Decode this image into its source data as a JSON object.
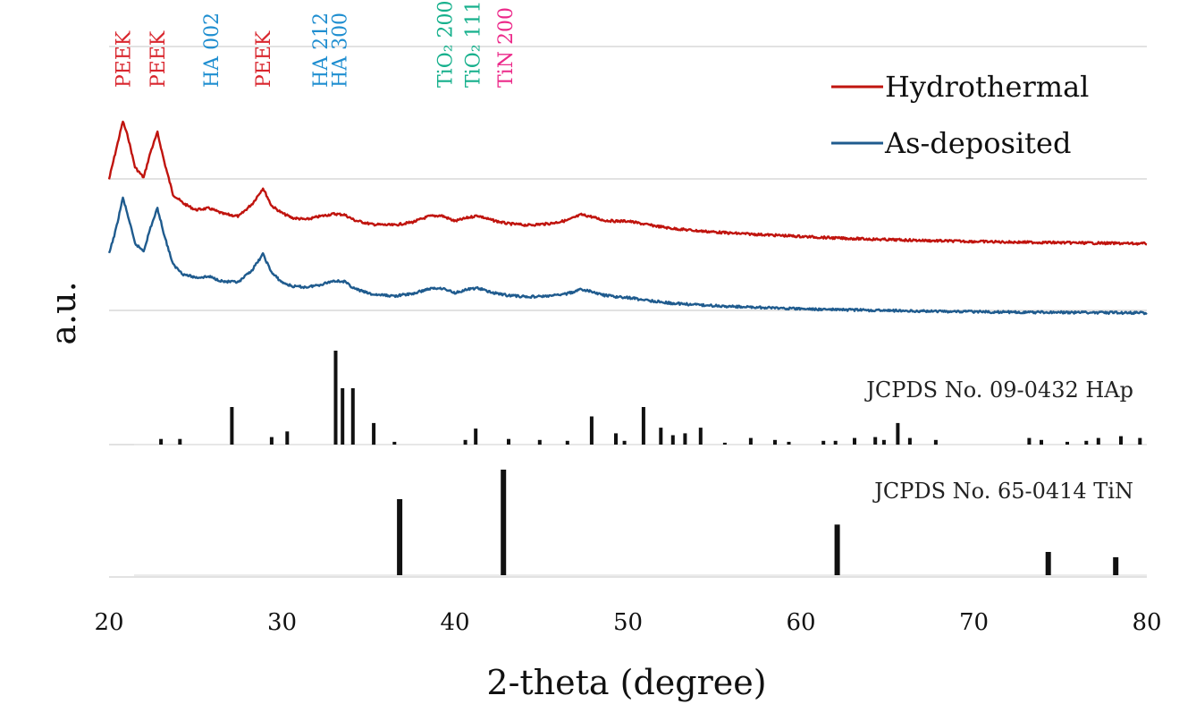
{
  "chart_data": {
    "type": "line",
    "xlabel": "2-theta (degree)",
    "ylabel": "a.u.",
    "xlim": [
      20,
      80
    ],
    "x_ticks": [
      "20",
      "30",
      "40",
      "50",
      "60",
      "70",
      "80"
    ],
    "grid": "horizontal",
    "legend_position": "top-right",
    "series": [
      {
        "name": "Hydrothermal",
        "color": "#c0140e",
        "x": [
          20,
          20.4,
          20.8,
          21.1,
          21.5,
          22.0,
          22.4,
          22.8,
          23.2,
          23.7,
          24.3,
          25.0,
          25.8,
          26.6,
          27.5,
          28.3,
          28.9,
          29.4,
          30.0,
          30.6,
          31.4,
          32.2,
          33.0,
          33.6,
          34.2,
          35.2,
          36.5,
          37.6,
          38.5,
          39.2,
          40.0,
          40.7,
          41.3,
          42.0,
          43.0,
          44.2,
          45.5,
          46.5,
          47.3,
          47.8,
          48.6,
          49.3,
          50.0,
          51.0,
          52.5,
          54.0,
          56.0,
          58.0,
          60.0,
          62.0,
          65.0,
          68.0,
          72.0,
          76.0,
          80.0
        ],
        "values": [
          44.8,
          52.0,
          59.2,
          55.2,
          47.8,
          45.2,
          51.6,
          56.4,
          49.0,
          41.0,
          38.8,
          37.2,
          37.6,
          36.2,
          35.6,
          38.8,
          42.6,
          38.2,
          36.4,
          35.2,
          34.8,
          35.6,
          36.2,
          36.0,
          34.6,
          33.6,
          33.4,
          34.2,
          35.6,
          35.8,
          34.4,
          35.2,
          35.8,
          34.8,
          33.8,
          33.4,
          33.8,
          34.6,
          36.0,
          35.6,
          34.6,
          34.4,
          34.4,
          33.6,
          32.6,
          32.0,
          31.4,
          31.0,
          30.6,
          30.2,
          29.8,
          29.5,
          29.2,
          29.0,
          28.8
        ]
      },
      {
        "name": "As-deposited",
        "color": "#1f5b8e",
        "x": [
          20,
          20.4,
          20.8,
          21.1,
          21.5,
          22.0,
          22.4,
          22.8,
          23.2,
          23.7,
          24.3,
          25.0,
          25.8,
          26.6,
          27.5,
          28.3,
          28.9,
          29.4,
          30.0,
          30.6,
          31.4,
          32.2,
          33.0,
          33.6,
          34.2,
          35.2,
          36.5,
          37.6,
          38.5,
          39.2,
          40.0,
          40.7,
          41.3,
          42.0,
          43.0,
          44.2,
          45.5,
          46.5,
          47.3,
          47.8,
          48.6,
          49.3,
          50.0,
          51.0,
          52.5,
          54.0,
          56.0,
          58.0,
          60.0,
          62.0,
          65.0,
          68.0,
          72.0,
          76.0,
          80.0
        ],
        "values": [
          26.2,
          32.4,
          40.2,
          35.6,
          28.8,
          27.0,
          32.8,
          37.6,
          30.8,
          23.6,
          21.2,
          20.4,
          20.6,
          19.4,
          19.2,
          22.4,
          26.2,
          21.6,
          19.2,
          18.2,
          18.0,
          18.6,
          19.6,
          19.4,
          17.6,
          16.2,
          15.8,
          16.4,
          17.6,
          17.8,
          16.6,
          17.4,
          17.8,
          16.8,
          16.0,
          15.6,
          15.8,
          16.4,
          17.4,
          17.0,
          16.0,
          15.6,
          15.4,
          14.8,
          14.0,
          13.6,
          13.2,
          12.9,
          12.6,
          12.4,
          12.2,
          12.0,
          11.8,
          11.7,
          11.6
        ]
      }
    ],
    "peak_labels": [
      {
        "label": "PEEK",
        "x": 20.8,
        "color": "#d9262e"
      },
      {
        "label": "PEEK",
        "x": 22.8,
        "color": "#d9262e"
      },
      {
        "label": "HA 002",
        "x": 25.9,
        "color": "#1f8ed0"
      },
      {
        "label": "PEEK",
        "x": 28.9,
        "color": "#d9262e"
      },
      {
        "label": "HA 212",
        "x": 32.2,
        "color": "#1f8ed0"
      },
      {
        "label": "HA 300",
        "x": 33.3,
        "color": "#1f8ed0"
      },
      {
        "label": "TiO₂ 200",
        "x": 39.4,
        "color": "#16b08c"
      },
      {
        "label": "TiO₂ 111",
        "x": 41.0,
        "color": "#16b08c"
      },
      {
        "label": "TiN 200",
        "x": 42.9,
        "color": "#ec2a8a"
      }
    ],
    "reference_patterns": [
      {
        "name": "JCPDS No. 09-0432 HAp",
        "x": [
          23.0,
          24.1,
          27.1,
          29.4,
          30.3,
          33.1,
          33.5,
          34.1,
          35.3,
          36.5,
          40.6,
          41.2,
          43.1,
          44.9,
          46.5,
          47.9,
          49.3,
          49.8,
          50.9,
          51.9,
          52.6,
          53.3,
          54.2,
          55.6,
          57.1,
          58.5,
          59.3,
          61.3,
          62.0,
          63.1,
          64.3,
          64.8,
          65.6,
          66.3,
          67.8,
          73.2,
          73.9,
          75.4,
          76.5,
          77.2,
          78.5,
          79.6
        ],
        "intensities": [
          6,
          6,
          40,
          8,
          14,
          100,
          60,
          60,
          23,
          3,
          5,
          17,
          6,
          5,
          4,
          30,
          12,
          4,
          40,
          18,
          10,
          12,
          18,
          2,
          7,
          5,
          3,
          4,
          4,
          7,
          8,
          5,
          23,
          7,
          5,
          7,
          5,
          3,
          4,
          7,
          9,
          7
        ]
      },
      {
        "name": "JCPDS No. 65-0414 TiN",
        "x": [
          36.8,
          42.8,
          62.1,
          74.3,
          78.2
        ],
        "intensities": [
          72,
          100,
          48,
          22,
          17
        ]
      }
    ]
  }
}
